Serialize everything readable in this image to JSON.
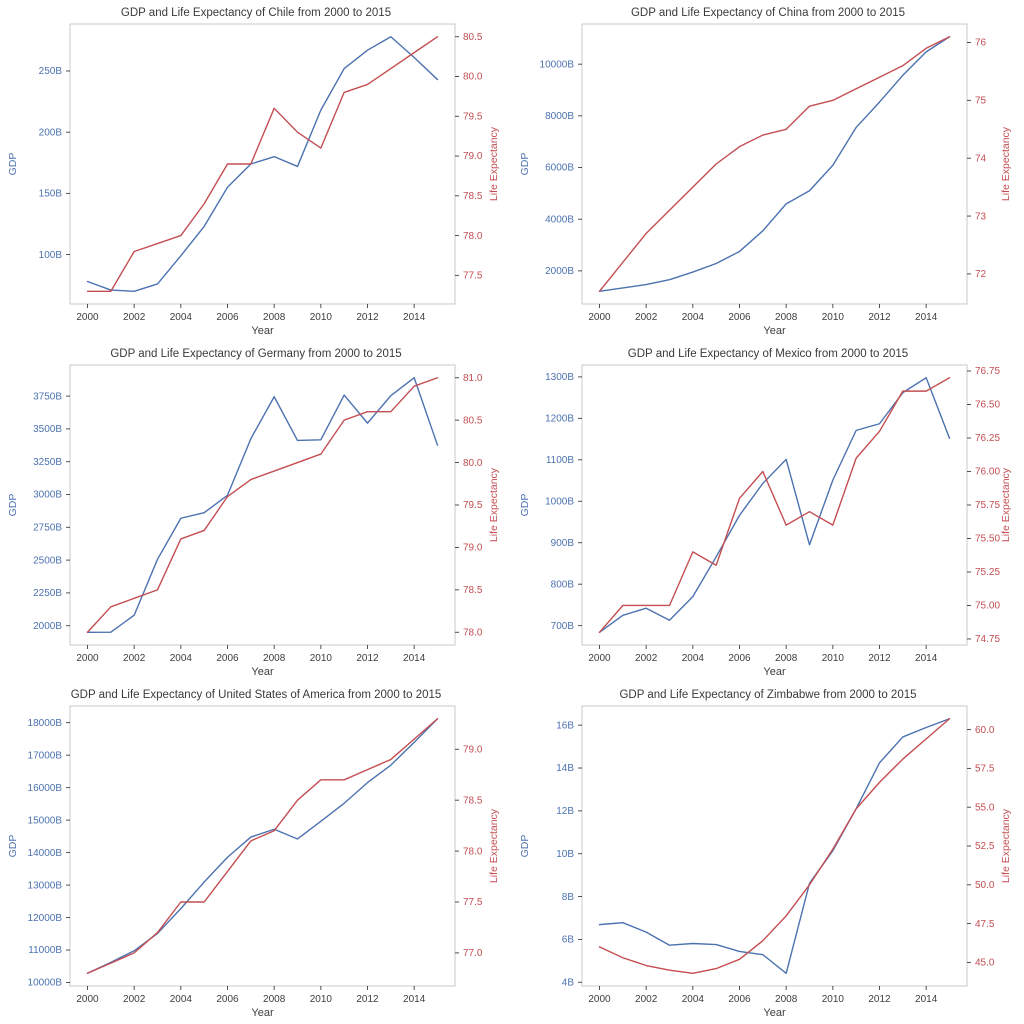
{
  "theme": {
    "background": "#ffffff",
    "gdp_blue": "#4c72b0",
    "life_expectancy_red": "#c44e52",
    "title_color": "#3a3a3a",
    "tick_text_color": "#3d3d3d",
    "tick_mark_color": "#3d3d3d",
    "frame_color": "#c9c9c9"
  },
  "chart_data": [
    {
      "type": "line",
      "country": "Chile",
      "title": "GDP and Life Expectancy of Chile from 2000 to 2015",
      "xlabel": "Year",
      "x": [
        2000,
        2001,
        2002,
        2003,
        2004,
        2005,
        2006,
        2007,
        2008,
        2009,
        2010,
        2011,
        2012,
        2013,
        2014,
        2015
      ],
      "x_ticks": [
        2000,
        2002,
        2004,
        2006,
        2008,
        2010,
        2012,
        2014
      ],
      "grid": false,
      "legend": "none",
      "axes": {
        "left": {
          "label": "GDP",
          "color": "#4c72b0",
          "tick_values": [
            100,
            150,
            200,
            250
          ],
          "tick_labels": [
            "100B",
            "150B",
            "200B",
            "250B"
          ]
        },
        "right": {
          "label": "Life Expectancy",
          "color": "#c44e52",
          "tick_values": [
            77.5,
            78.0,
            78.5,
            79.0,
            79.5,
            80.0,
            80.5
          ],
          "tick_labels": [
            "77.5",
            "78.0",
            "78.5",
            "79.0",
            "79.5",
            "80.0",
            "80.5"
          ]
        }
      },
      "series": [
        {
          "name": "GDP",
          "axis": "left",
          "color": "#4c72b0",
          "unit": "billion USD",
          "values": [
            78,
            71,
            70,
            76,
            99,
            123,
            155,
            174,
            180,
            172,
            218,
            252,
            267,
            278,
            261,
            243
          ]
        },
        {
          "name": "Life Expectancy",
          "axis": "right",
          "color": "#c44e52",
          "unit": "years",
          "values": [
            77.3,
            77.3,
            77.8,
            77.9,
            78.0,
            78.4,
            78.9,
            78.9,
            79.6,
            79.3,
            79.1,
            79.8,
            79.9,
            80.1,
            80.3,
            80.5
          ]
        }
      ]
    },
    {
      "type": "line",
      "country": "China",
      "title": "GDP and Life Expectancy of China from 2000 to 2015",
      "xlabel": "Year",
      "x": [
        2000,
        2001,
        2002,
        2003,
        2004,
        2005,
        2006,
        2007,
        2008,
        2009,
        2010,
        2011,
        2012,
        2013,
        2014,
        2015
      ],
      "x_ticks": [
        2000,
        2002,
        2004,
        2006,
        2008,
        2010,
        2012,
        2014
      ],
      "grid": false,
      "legend": "none",
      "axes": {
        "left": {
          "label": "GDP",
          "color": "#4c72b0",
          "tick_values": [
            2000,
            4000,
            6000,
            8000,
            10000
          ],
          "tick_labels": [
            "2000B",
            "4000B",
            "6000B",
            "8000B",
            "10000B"
          ]
        },
        "right": {
          "label": "Life Expectancy",
          "color": "#c44e52",
          "tick_values": [
            72,
            73,
            74,
            75,
            76
          ],
          "tick_labels": [
            "72",
            "73",
            "74",
            "75",
            "76"
          ]
        }
      },
      "series": [
        {
          "name": "GDP",
          "axis": "left",
          "color": "#4c72b0",
          "unit": "billion USD",
          "values": [
            1211,
            1339,
            1471,
            1660,
            1955,
            2286,
            2752,
            3550,
            4594,
            5102,
            6087,
            7552,
            8532,
            9570,
            10476,
            11062
          ]
        },
        {
          "name": "Life Expectancy",
          "axis": "right",
          "color": "#c44e52",
          "unit": "years",
          "values": [
            71.7,
            72.2,
            72.7,
            73.1,
            73.5,
            73.9,
            74.2,
            74.4,
            74.5,
            74.9,
            75.0,
            75.2,
            75.4,
            75.6,
            75.9,
            76.1
          ]
        }
      ]
    },
    {
      "type": "line",
      "country": "Germany",
      "title": "GDP and Life Expectancy of Germany from 2000 to 2015",
      "xlabel": "Year",
      "x": [
        2000,
        2001,
        2002,
        2003,
        2004,
        2005,
        2006,
        2007,
        2008,
        2009,
        2010,
        2011,
        2012,
        2013,
        2014,
        2015
      ],
      "x_ticks": [
        2000,
        2002,
        2004,
        2006,
        2008,
        2010,
        2012,
        2014
      ],
      "grid": false,
      "legend": "none",
      "axes": {
        "left": {
          "label": "GDP",
          "color": "#4c72b0",
          "tick_values": [
            2000,
            2250,
            2500,
            2750,
            3000,
            3250,
            3500,
            3750
          ],
          "tick_labels": [
            "2000B",
            "2250B",
            "2500B",
            "2750B",
            "3000B",
            "3250B",
            "3500B",
            "3750B"
          ]
        },
        "right": {
          "label": "Life Expectancy",
          "color": "#c44e52",
          "tick_values": [
            78.0,
            78.5,
            79.0,
            79.5,
            80.0,
            80.5,
            81.0
          ],
          "tick_labels": [
            "78.0",
            "78.5",
            "79.0",
            "79.5",
            "80.0",
            "80.5",
            "81.0"
          ]
        }
      },
      "series": [
        {
          "name": "GDP",
          "axis": "left",
          "color": "#4c72b0",
          "unit": "billion USD",
          "values": [
            1950,
            1951,
            2080,
            2506,
            2819,
            2861,
            2994,
            3425,
            3745,
            3412,
            3417,
            3758,
            3544,
            3753,
            3890,
            3376
          ]
        },
        {
          "name": "Life Expectancy",
          "axis": "right",
          "color": "#c44e52",
          "unit": "years",
          "values": [
            78.0,
            78.3,
            78.4,
            78.5,
            79.1,
            79.2,
            79.6,
            79.8,
            79.9,
            80.0,
            80.1,
            80.5,
            80.6,
            80.6,
            80.9,
            81.0
          ]
        }
      ]
    },
    {
      "type": "line",
      "country": "Mexico",
      "title": "GDP and Life Expectancy of Mexico from 2000 to 2015",
      "xlabel": "Year",
      "x": [
        2000,
        2001,
        2002,
        2003,
        2004,
        2005,
        2006,
        2007,
        2008,
        2009,
        2010,
        2011,
        2012,
        2013,
        2014,
        2015
      ],
      "x_ticks": [
        2000,
        2002,
        2004,
        2006,
        2008,
        2010,
        2012,
        2014
      ],
      "grid": false,
      "legend": "none",
      "axes": {
        "left": {
          "label": "GDP",
          "color": "#4c72b0",
          "tick_values": [
            700,
            800,
            900,
            1000,
            1100,
            1200,
            1300
          ],
          "tick_labels": [
            "700B",
            "800B",
            "900B",
            "1000B",
            "1100B",
            "1200B",
            "1300B"
          ]
        },
        "right": {
          "label": "Life Expectancy",
          "color": "#c44e52",
          "tick_values": [
            74.75,
            75.0,
            75.25,
            75.5,
            75.75,
            76.0,
            76.25,
            76.5,
            76.75
          ],
          "tick_labels": [
            "74.75",
            "75.00",
            "75.25",
            "75.50",
            "75.75",
            "76.00",
            "76.25",
            "76.50",
            "76.75"
          ]
        }
      },
      "series": [
        {
          "name": "GDP",
          "axis": "left",
          "color": "#4c72b0",
          "unit": "billion USD",
          "values": [
            684,
            725,
            742,
            713,
            770,
            866,
            966,
            1043,
            1101,
            895,
            1051,
            1171,
            1187,
            1262,
            1298,
            1152
          ]
        },
        {
          "name": "Life Expectancy",
          "axis": "right",
          "color": "#c44e52",
          "unit": "years",
          "values": [
            74.8,
            75.0,
            75.0,
            75.0,
            75.4,
            75.3,
            75.8,
            76.0,
            75.6,
            75.7,
            75.6,
            76.1,
            76.3,
            76.6,
            76.6,
            76.7
          ]
        }
      ]
    },
    {
      "type": "line",
      "country": "United States of America",
      "title": "GDP and Life Expectancy of United States of America from 2000 to 2015",
      "xlabel": "Year",
      "x": [
        2000,
        2001,
        2002,
        2003,
        2004,
        2005,
        2006,
        2007,
        2008,
        2009,
        2010,
        2011,
        2012,
        2013,
        2014,
        2015
      ],
      "x_ticks": [
        2000,
        2002,
        2004,
        2006,
        2008,
        2010,
        2012,
        2014
      ],
      "grid": false,
      "legend": "none",
      "axes": {
        "left": {
          "label": "GDP",
          "color": "#4c72b0",
          "tick_values": [
            10000,
            11000,
            12000,
            13000,
            14000,
            15000,
            16000,
            17000,
            18000
          ],
          "tick_labels": [
            "10000B",
            "11000B",
            "12000B",
            "13000B",
            "14000B",
            "15000B",
            "16000B",
            "17000B",
            "18000B"
          ]
        },
        "right": {
          "label": "Life Expectancy",
          "color": "#c44e52",
          "tick_values": [
            77.0,
            77.5,
            78.0,
            78.5,
            79.0
          ],
          "tick_labels": [
            "77.0",
            "77.5",
            "78.0",
            "78.5",
            "79.0"
          ]
        }
      },
      "series": [
        {
          "name": "GDP",
          "axis": "left",
          "color": "#4c72b0",
          "unit": "billion USD",
          "values": [
            10285,
            10622,
            10978,
            11511,
            12275,
            13094,
            13856,
            14478,
            14719,
            14419,
            14964,
            15518,
            16155,
            16692,
            17393,
            18121
          ]
        },
        {
          "name": "Life Expectancy",
          "axis": "right",
          "color": "#c44e52",
          "unit": "years",
          "values": [
            76.8,
            76.9,
            77.0,
            77.2,
            77.5,
            77.5,
            77.8,
            78.1,
            78.2,
            78.5,
            78.7,
            78.7,
            78.8,
            78.9,
            79.1,
            79.3
          ]
        }
      ]
    },
    {
      "type": "line",
      "country": "Zimbabwe",
      "title": "GDP and Life Expectancy of Zimbabwe from 2000 to 2015",
      "xlabel": "Year",
      "x": [
        2000,
        2001,
        2002,
        2003,
        2004,
        2005,
        2006,
        2007,
        2008,
        2009,
        2010,
        2011,
        2012,
        2013,
        2014,
        2015
      ],
      "x_ticks": [
        2000,
        2002,
        2004,
        2006,
        2008,
        2010,
        2012,
        2014
      ],
      "grid": false,
      "legend": "none",
      "axes": {
        "left": {
          "label": "GDP",
          "color": "#4c72b0",
          "tick_values": [
            4,
            6,
            8,
            10,
            12,
            14,
            16
          ],
          "tick_labels": [
            "4B",
            "6B",
            "8B",
            "10B",
            "12B",
            "14B",
            "16B"
          ]
        },
        "right": {
          "label": "Life Expectancy",
          "color": "#c44e52",
          "tick_values": [
            45.0,
            47.5,
            50.0,
            52.5,
            55.0,
            57.5,
            60.0
          ],
          "tick_labels": [
            "45.0",
            "47.5",
            "50.0",
            "52.5",
            "55.0",
            "57.5",
            "60.0"
          ]
        }
      },
      "series": [
        {
          "name": "GDP",
          "axis": "left",
          "color": "#4c72b0",
          "unit": "billion USD",
          "values": [
            6.69,
            6.78,
            6.34,
            5.73,
            5.81,
            5.76,
            5.44,
            5.29,
            4.42,
            8.62,
            10.14,
            12.1,
            14.24,
            15.45,
            15.89,
            16.3
          ]
        },
        {
          "name": "Life Expectancy",
          "axis": "right",
          "color": "#c44e52",
          "unit": "years",
          "values": [
            46.0,
            45.3,
            44.8,
            44.5,
            44.3,
            44.6,
            45.2,
            46.4,
            48.0,
            50.0,
            52.3,
            54.9,
            56.6,
            58.1,
            59.4,
            60.7
          ]
        }
      ]
    }
  ]
}
